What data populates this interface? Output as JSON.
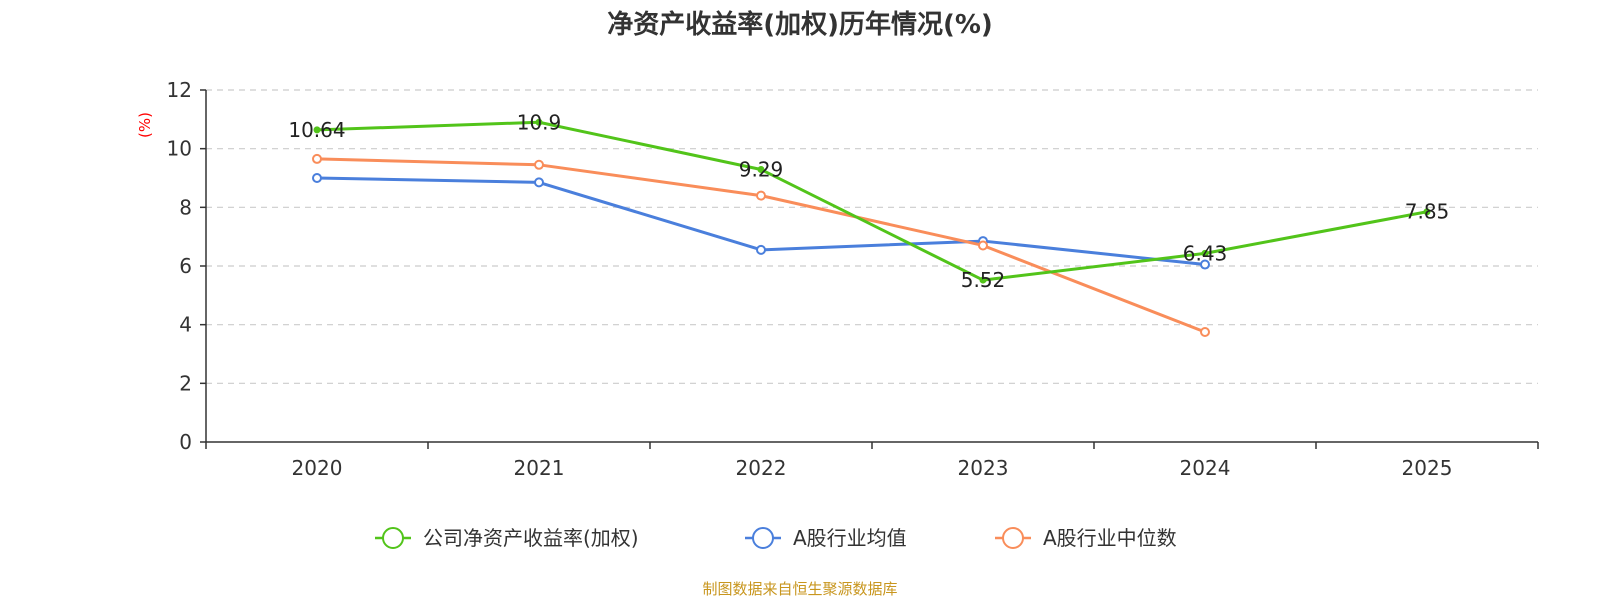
{
  "chart_data": {
    "type": "line",
    "title": "净资产收益率(加权)历年情况(%)",
    "xlabel": "",
    "ylabel": "(%)",
    "categories": [
      "2020",
      "2021",
      "2022",
      "2023",
      "2024",
      "2025"
    ],
    "ylim": [
      0,
      12
    ],
    "yticks": [
      0,
      2,
      4,
      6,
      8,
      10,
      12
    ],
    "grid": true,
    "legend_position": "bottom-center",
    "series": [
      {
        "name": "公司净资产收益率(加权)",
        "color": "#52c41a",
        "values": [
          10.64,
          10.9,
          9.29,
          5.52,
          6.43,
          7.85
        ],
        "show_labels": true,
        "show_markers": false
      },
      {
        "name": "A股行业均值",
        "color": "#4a7fdc",
        "values": [
          9.0,
          8.85,
          6.55,
          6.85,
          6.05,
          null
        ],
        "show_labels": false,
        "show_markers": true
      },
      {
        "name": "A股行业中位数",
        "color": "#f98d5a",
        "values": [
          9.65,
          9.45,
          8.4,
          6.7,
          3.75,
          null
        ],
        "show_labels": false,
        "show_markers": true
      }
    ],
    "ylabel_color": "#ff0000",
    "source": "制图数据来自恒生聚源数据库",
    "source_color": "#c8961e"
  }
}
